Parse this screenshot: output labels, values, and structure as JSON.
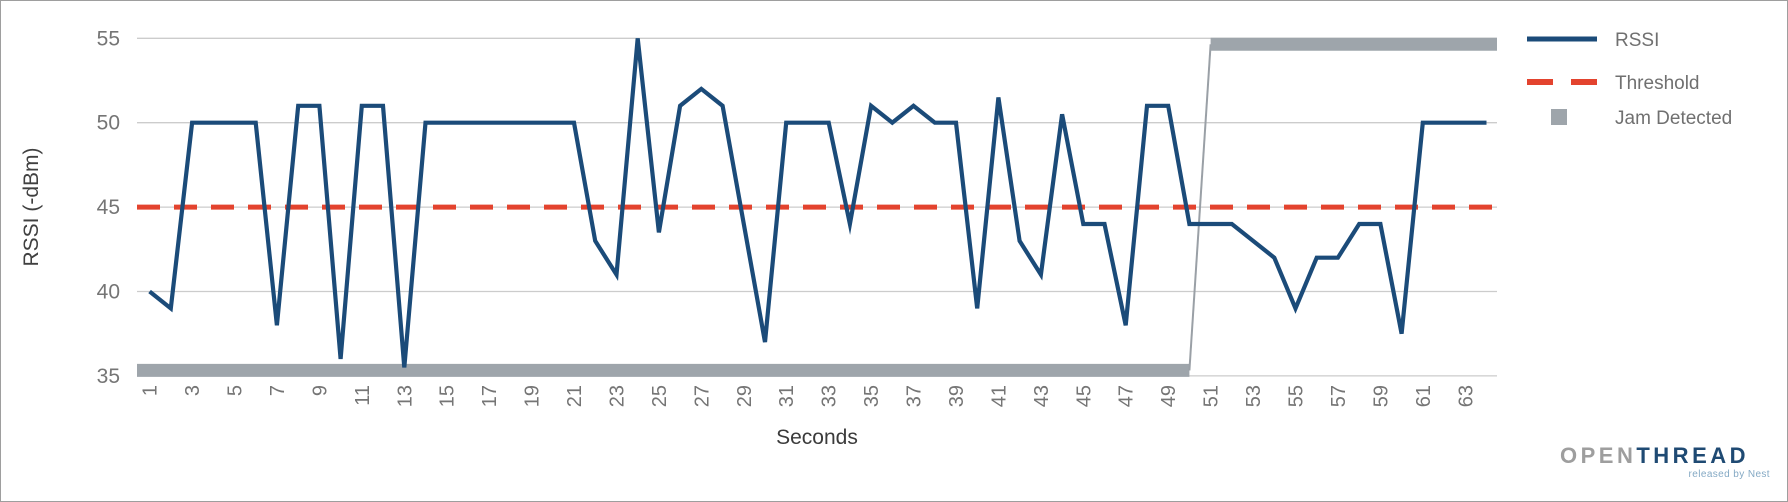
{
  "chart_data": {
    "type": "line",
    "title": "",
    "xlabel": "Seconds",
    "ylabel": "RSSI (-dBm)",
    "x_range": [
      1,
      64
    ],
    "ylim": [
      35,
      55
    ],
    "yticks": [
      55,
      50,
      45,
      40,
      35
    ],
    "xticks": [
      1,
      3,
      5,
      7,
      9,
      11,
      13,
      15,
      17,
      19,
      21,
      23,
      25,
      27,
      29,
      31,
      33,
      35,
      37,
      39,
      41,
      43,
      45,
      47,
      49,
      51,
      53,
      55,
      57,
      59,
      61,
      63
    ],
    "grid": true,
    "legend_position": "right",
    "series": [
      {
        "name": "RSSI",
        "type": "line",
        "color": "#1b4b79",
        "x_start": 1,
        "values": [
          40,
          39,
          50,
          50,
          50,
          50,
          38,
          51,
          51,
          36,
          51,
          51,
          35.5,
          50,
          50,
          50,
          50,
          50,
          50,
          50,
          50,
          43,
          41,
          55,
          43.5,
          51,
          52,
          51,
          44,
          37,
          50,
          50,
          50,
          44,
          51,
          50,
          51,
          50,
          50,
          39,
          51.5,
          43,
          41,
          50.5,
          44,
          44,
          38,
          51,
          51,
          44,
          44,
          44,
          43,
          42,
          39,
          42,
          42,
          44,
          44,
          37.5,
          50,
          50,
          50,
          50
        ]
      },
      {
        "name": "Threshold",
        "type": "dashed-line",
        "color": "#e3432e",
        "value": 45
      },
      {
        "name": "Jam Detected",
        "type": "thick-step",
        "color": "#9ea5ab",
        "segments": [
          {
            "from_second": 1,
            "to_second": 50,
            "level": 35,
            "note": "bar along bottom axis"
          },
          {
            "from_second": 51,
            "to_second": 64,
            "level": 55,
            "note": "bar along top, jumps up between second 50 and 51"
          }
        ]
      }
    ]
  },
  "legend": {
    "items": [
      {
        "label": "RSSI",
        "swatch": "blue-line"
      },
      {
        "label": "Threshold",
        "swatch": "red-dashed-line"
      },
      {
        "label": "Jam Detected",
        "swatch": "gray-square"
      }
    ]
  },
  "axes": {
    "y_title": "RSSI (-dBm)",
    "x_title": "Seconds"
  },
  "logo": {
    "part1": "OPEN",
    "part2": "THREAD",
    "tagline": "released by Nest"
  },
  "colors": {
    "rssi_line": "#1b4b79",
    "threshold": "#e3432e",
    "jam": "#9ea5ab",
    "gridline": "#cccccc",
    "tick_label": "#757575",
    "axis_title": "#404040",
    "legend_text": "#707070"
  }
}
